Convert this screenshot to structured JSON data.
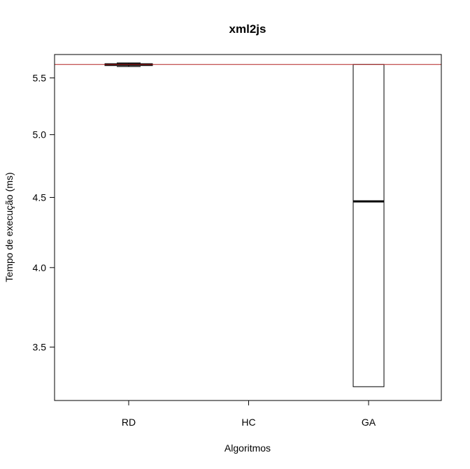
{
  "chart_data": {
    "type": "boxplot",
    "title": "xml2js",
    "xlabel": "Algoritmos",
    "ylabel": "Tempo de execução (ms)",
    "categories": [
      "RD",
      "HC",
      "GA"
    ],
    "ylim": [
      3.2,
      5.72
    ],
    "y_scale": "log",
    "yticks": [
      3.5,
      4.0,
      4.5,
      5.0,
      5.5
    ],
    "ytick_labels": [
      "3.5",
      "4.0",
      "4.5",
      "5.0",
      "5.5"
    ],
    "boxes": [
      {
        "category": "RD",
        "min": 5.605,
        "q1": 5.615,
        "median": 5.625,
        "q3": 5.632,
        "max": 5.64
      },
      {
        "category": "HC",
        "min": null,
        "q1": null,
        "median": null,
        "q3": null,
        "max": null
      },
      {
        "category": "GA",
        "min": 3.275,
        "q1": 3.275,
        "median": 4.47,
        "q3": 5.625,
        "max": 5.625
      }
    ],
    "reference_line": {
      "y": 5.625,
      "color": "#b22222"
    },
    "colors": {
      "box_border": "#000000",
      "reference": "#b22222",
      "background": "#ffffff"
    }
  }
}
